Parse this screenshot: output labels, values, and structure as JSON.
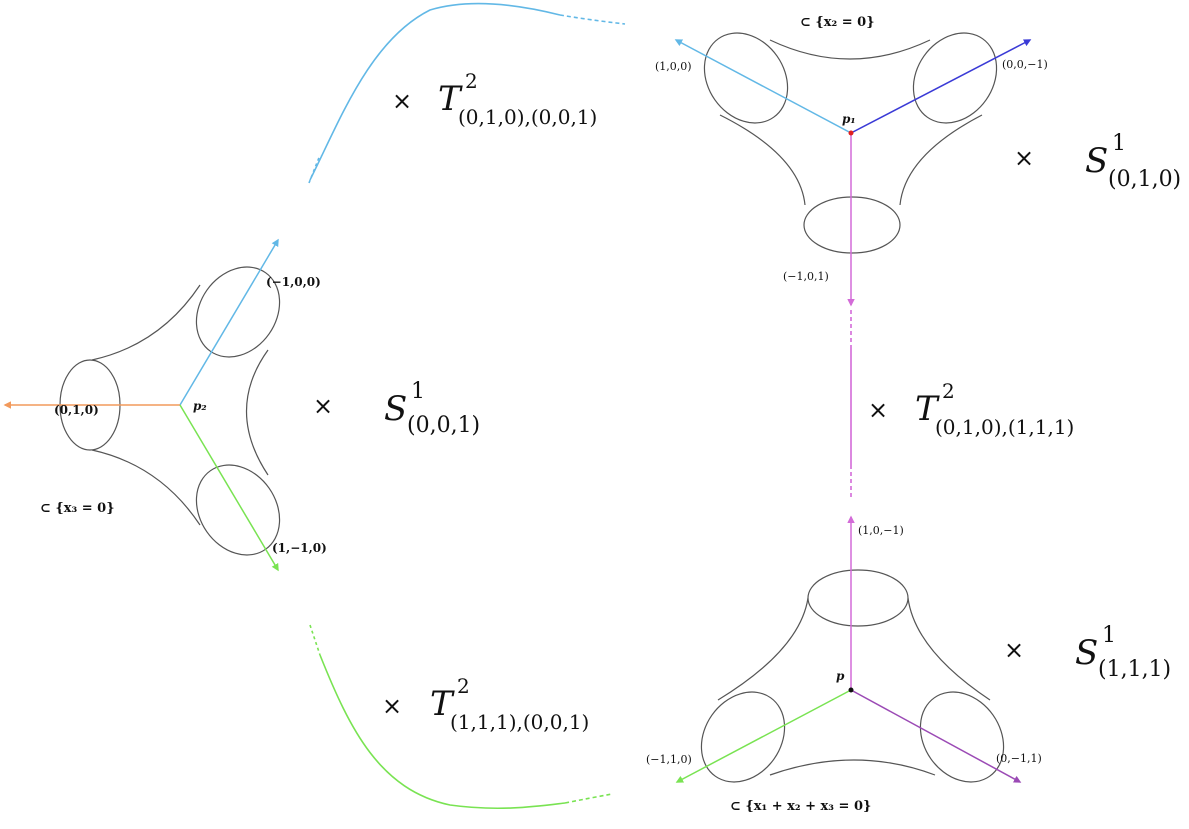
{
  "colors": {
    "cyan": "#62b8e6",
    "blue": "#3a3ad6",
    "magenta": "#d36bd8",
    "orange": "#f29a5c",
    "green": "#79e352",
    "purple": "#9b4ab5",
    "outline": "#555555",
    "red_point": "#e02020"
  },
  "top_right": {
    "subset": "⊂ {x₂ = 0}",
    "point": "p₁",
    "ray_labels": {
      "left": "(1,0,0)",
      "right": "(0,0,−1)",
      "down": "(−1,0,1)"
    },
    "factor": {
      "times": "×",
      "base": "S",
      "sup": "1",
      "sub": "(0,1,0)"
    }
  },
  "left": {
    "subset": "⊂ {x₃ = 0}",
    "point": "p₂",
    "ray_labels": {
      "up": "(−1,0,0)",
      "left": "(0,1,0)",
      "down": "(1,−1,0)"
    },
    "factor": {
      "times": "×",
      "base": "S",
      "sup": "1",
      "sub": "(0,0,1)"
    }
  },
  "bottom_right": {
    "subset": "⊂ {x₁ + x₂ + x₃ = 0}",
    "point": "p",
    "ray_labels": {
      "up": "(1,0,−1)",
      "left": "(−1,1,0)",
      "right": "(0,−1,1)"
    },
    "factor": {
      "times": "×",
      "base": "S",
      "sup": "1",
      "sub": "(1,1,1)"
    }
  },
  "edges": {
    "top": {
      "times": "×",
      "base": "T",
      "sup": "2",
      "sub": "(0,1,0),(0,0,1)"
    },
    "vertical": {
      "times": "×",
      "base": "T",
      "sup": "2",
      "sub": "(0,1,0),(1,1,1)"
    },
    "bottom": {
      "times": "×",
      "base": "T",
      "sup": "2",
      "sub": "(1,1,1),(0,0,1)"
    }
  }
}
